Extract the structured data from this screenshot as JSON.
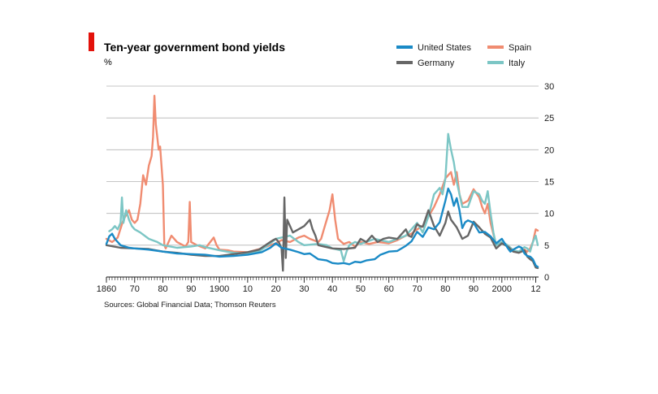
{
  "chart_data": {
    "type": "line",
    "title": "Ten-year government bond yields",
    "unit_label": "%",
    "source": "Sources: Global Financial Data; Thomson Reuters",
    "xlim": [
      1860,
      2013
    ],
    "ylim": [
      0,
      30
    ],
    "y_ticks": [
      0,
      5,
      10,
      15,
      20,
      25,
      30
    ],
    "y_tick_labels": [
      "0",
      "5",
      "10",
      "15",
      "20",
      "25",
      "30"
    ],
    "x_ticks": [
      1860,
      1870,
      1880,
      1890,
      1900,
      1910,
      1920,
      1930,
      1940,
      1950,
      1960,
      1970,
      1980,
      1990,
      2000,
      2012
    ],
    "x_tick_labels": [
      "1860",
      "70",
      "80",
      "90",
      "1900",
      "10",
      "20",
      "30",
      "40",
      "50",
      "60",
      "70",
      "80",
      "90",
      "2000",
      "12"
    ],
    "grid": true,
    "legend_position": "top-right",
    "accent_color": "#e3120b",
    "grid_color": "#b3b3b3",
    "series": [
      {
        "name": "United States",
        "color": "#1a8ac6",
        "x": [
          1860,
          1861,
          1862,
          1863,
          1865,
          1868,
          1870,
          1875,
          1880,
          1885,
          1890,
          1895,
          1900,
          1905,
          1910,
          1915,
          1918,
          1920,
          1922,
          1925,
          1928,
          1930,
          1932,
          1935,
          1938,
          1940,
          1942,
          1944,
          1946,
          1948,
          1950,
          1952,
          1955,
          1957,
          1960,
          1963,
          1966,
          1968,
          1970,
          1972,
          1974,
          1976,
          1978,
          1980,
          1981,
          1982,
          1983,
          1984,
          1985,
          1986,
          1987,
          1988,
          1990,
          1992,
          1994,
          1996,
          1998,
          2000,
          2002,
          2003,
          2004,
          2006,
          2007,
          2008,
          2009,
          2010,
          2011,
          2012,
          2012.7
        ],
        "values": [
          5.2,
          6.4,
          6.8,
          6.0,
          5.0,
          4.6,
          4.5,
          4.3,
          4.0,
          3.7,
          3.6,
          3.5,
          3.2,
          3.3,
          3.5,
          3.9,
          4.6,
          5.3,
          4.6,
          4.3,
          3.9,
          3.6,
          3.7,
          2.8,
          2.6,
          2.2,
          2.1,
          2.2,
          2.0,
          2.4,
          2.3,
          2.6,
          2.8,
          3.5,
          4.0,
          4.1,
          4.9,
          5.6,
          7.1,
          6.3,
          7.8,
          7.5,
          8.6,
          12.0,
          13.9,
          13.0,
          11.2,
          12.4,
          10.5,
          7.7,
          8.6,
          8.9,
          8.5,
          7.0,
          7.1,
          6.4,
          5.3,
          6.0,
          4.6,
          4.0,
          4.3,
          4.8,
          4.6,
          3.7,
          3.3,
          3.2,
          2.8,
          1.8,
          1.6
        ]
      },
      {
        "name": "Spain",
        "color": "#f08c71",
        "x": [
          1860,
          1862,
          1864,
          1866,
          1868,
          1869,
          1870,
          1871,
          1872,
          1873,
          1874,
          1875,
          1876,
          1876.5,
          1877,
          1877.5,
          1878,
          1878.5,
          1879,
          1880,
          1880.5,
          1881,
          1883,
          1885,
          1888,
          1889,
          1889.5,
          1890,
          1892,
          1895,
          1898,
          1899,
          1900,
          1903,
          1905,
          1910,
          1915,
          1918,
          1920,
          1922,
          1925,
          1928,
          1930,
          1932,
          1935,
          1936,
          1937,
          1938,
          1939,
          1940,
          1941,
          1942,
          1944,
          1946,
          1948,
          1950,
          1953,
          1956,
          1960,
          1963,
          1966,
          1968,
          1970,
          1972,
          1974,
          1976,
          1978,
          1980,
          1981,
          1982,
          1983,
          1984,
          1985,
          1986,
          1988,
          1990,
          1992,
          1993,
          1994,
          1995,
          1996,
          1998,
          2000,
          2002,
          2004,
          2006,
          2008,
          2009,
          2010,
          2011,
          2012,
          2012.7
        ],
        "values": [
          6.0,
          5.5,
          6.2,
          9.0,
          10.5,
          9.0,
          8.5,
          9.0,
          11.5,
          16.0,
          14.5,
          17.5,
          19.0,
          22.0,
          28.5,
          24.0,
          22.0,
          20.0,
          20.5,
          14.5,
          5.0,
          4.5,
          6.5,
          5.5,
          4.8,
          5.5,
          11.8,
          5.5,
          5.0,
          4.5,
          6.2,
          5.0,
          4.3,
          4.2,
          4.0,
          3.9,
          4.5,
          5.0,
          5.3,
          5.8,
          5.5,
          6.2,
          6.5,
          6.0,
          5.5,
          6.0,
          7.5,
          9.0,
          10.5,
          13.0,
          9.0,
          6.0,
          5.2,
          5.5,
          4.8,
          5.5,
          5.2,
          5.5,
          5.3,
          5.8,
          6.5,
          6.8,
          7.5,
          8.0,
          9.5,
          11.0,
          13.0,
          15.5,
          16.0,
          16.5,
          14.5,
          16.5,
          13.0,
          11.5,
          12.0,
          13.8,
          12.5,
          11.0,
          10.0,
          11.5,
          8.5,
          5.0,
          5.5,
          5.0,
          4.2,
          3.9,
          4.3,
          4.0,
          4.5,
          5.5,
          7.5,
          7.3
        ]
      },
      {
        "name": "Germany",
        "color": "#666666",
        "x": [
          1860,
          1865,
          1870,
          1875,
          1880,
          1885,
          1890,
          1895,
          1900,
          1905,
          1910,
          1912,
          1914,
          1916,
          1918,
          1919,
          1920,
          1921,
          1922,
          1922.5,
          1923,
          1923.5,
          1924,
          1925,
          1926,
          1928,
          1930,
          1931,
          1932,
          1933,
          1934,
          1935,
          1937,
          1940,
          1944,
          1948,
          1950,
          1952,
          1954,
          1956,
          1958,
          1960,
          1963,
          1966,
          1967,
          1968,
          1970,
          1971,
          1972,
          1974,
          1976,
          1978,
          1980,
          1981,
          1982,
          1984,
          1986,
          1988,
          1990,
          1992,
          1994,
          1996,
          1998,
          2000,
          2002,
          2004,
          2006,
          2008,
          2009,
          2010,
          2011,
          2012,
          2012.7
        ],
        "values": [
          5.0,
          4.6,
          4.5,
          4.4,
          4.0,
          3.8,
          3.5,
          3.3,
          3.3,
          3.6,
          3.9,
          4.1,
          4.3,
          4.9,
          5.5,
          5.8,
          6.0,
          5.5,
          4.5,
          1.0,
          12.5,
          3.0,
          9.0,
          8.0,
          7.0,
          7.5,
          8.0,
          8.5,
          9.0,
          7.5,
          6.5,
          5.0,
          4.8,
          4.5,
          4.4,
          4.6,
          6.0,
          5.5,
          6.5,
          5.5,
          6.0,
          6.2,
          6.0,
          7.5,
          6.5,
          6.3,
          8.3,
          8.0,
          7.9,
          10.5,
          8.0,
          6.5,
          8.5,
          10.3,
          9.0,
          7.8,
          6.0,
          6.5,
          8.7,
          7.8,
          6.8,
          6.2,
          4.5,
          5.3,
          4.8,
          4.0,
          3.8,
          4.2,
          3.2,
          2.8,
          2.5,
          1.5,
          1.4
        ]
      },
      {
        "name": "Italy",
        "color": "#7cc6c5",
        "x": [
          1861,
          1862,
          1863,
          1864,
          1865,
          1865.5,
          1866,
          1867,
          1868,
          1869,
          1870,
          1872,
          1875,
          1878,
          1880,
          1885,
          1890,
          1893,
          1895,
          1900,
          1905,
          1910,
          1914,
          1918,
          1920,
          1925,
          1928,
          1930,
          1935,
          1938,
          1940,
          1943,
          1944,
          1945,
          1946,
          1948,
          1950,
          1955,
          1960,
          1963,
          1966,
          1970,
          1972,
          1974,
          1976,
          1978,
          1979,
          1980,
          1981,
          1982,
          1983,
          1984,
          1986,
          1988,
          1990,
          1992,
          1993,
          1994,
          1995,
          1996,
          1997,
          1998,
          2000,
          2002,
          2004,
          2006,
          2008,
          2009,
          2010,
          2011,
          2012,
          2012.7
        ],
        "values": [
          7.2,
          7.5,
          8.0,
          7.5,
          8.5,
          12.5,
          8.5,
          10.5,
          9.0,
          8.0,
          7.5,
          7.0,
          6.0,
          5.5,
          5.0,
          4.6,
          4.8,
          5.0,
          4.7,
          4.2,
          3.8,
          3.7,
          4.0,
          5.3,
          6.0,
          6.5,
          5.5,
          5.0,
          5.2,
          5.0,
          4.5,
          4.2,
          2.5,
          4.0,
          5.0,
          5.5,
          5.2,
          6.0,
          5.5,
          6.0,
          6.5,
          8.5,
          7.0,
          9.5,
          13.0,
          14.0,
          13.0,
          15.5,
          22.5,
          20.0,
          18.0,
          15.0,
          11.0,
          11.0,
          13.5,
          13.0,
          12.0,
          11.5,
          13.5,
          10.0,
          7.0,
          5.0,
          5.5,
          5.0,
          4.2,
          4.0,
          4.7,
          4.5,
          4.0,
          5.5,
          6.5,
          5.0
        ]
      }
    ]
  }
}
